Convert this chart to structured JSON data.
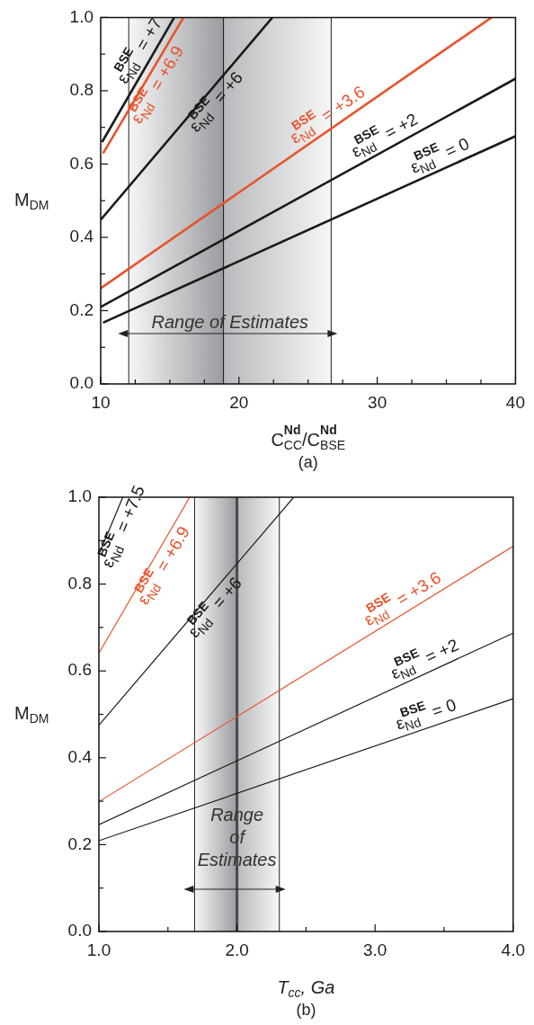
{
  "chart_data": [
    {
      "type": "line",
      "title": "(a)",
      "xlabel": "C$_{CC}$$^{Nd}$/C$_{BSE}$$^{Nd}$",
      "ylabel": "M$_{DM}$",
      "marker": "none",
      "line_style": "solid",
      "xlim": [
        10,
        40
      ],
      "ylim": [
        0,
        1
      ],
      "xticks": [
        10,
        {
          "value": 12.5,
          "label": null
        },
        {
          "value": 15,
          "label": null
        },
        {
          "value": 17.5,
          "label": null
        },
        20,
        {
          "value": 22.5,
          "label": null
        },
        {
          "value": 25,
          "label": null
        },
        {
          "value": 27.5,
          "label": null
        },
        30,
        {
          "value": 32.5,
          "label": null
        },
        {
          "value": 35,
          "label": null
        },
        {
          "value": 37.5,
          "label": null
        },
        40
      ],
      "yticks": [
        {
          "value": 0,
          "label": "0.0"
        },
        {
          "value": 0.1,
          "label": null
        },
        {
          "value": 0.2,
          "label": "0.2"
        },
        {
          "value": 0.3,
          "label": null
        },
        {
          "value": 0.4,
          "label": "0.4"
        },
        {
          "value": 0.5,
          "label": null
        },
        {
          "value": 0.6,
          "label": "0.6"
        },
        {
          "value": 0.7,
          "label": null
        },
        {
          "value": 0.8,
          "label": "0.8"
        },
        {
          "value": 0.9,
          "label": null
        },
        {
          "value": 1,
          "label": "1.0"
        }
      ],
      "series": [
        {
          "name": "ε$_{Nd}$$^{BSE}$ = +7",
          "color": "#1a1a1a",
          "x": [
            10.1,
            15.32
          ],
          "values": [
            0.66,
            1.0
          ]
        },
        {
          "name": "ε$_{Nd}$$^{BSE}$ = +6.9",
          "color": "#e8532a",
          "x": [
            10.17,
            15.99
          ],
          "values": [
            0.629,
            1.0
          ]
        },
        {
          "name": "ε$_{Nd}$$^{BSE}$ = +6",
          "color": "#1a1a1a",
          "x": [
            10,
            22.42
          ],
          "values": [
            0.448,
            1.0
          ]
        },
        {
          "name": "ε$_{Nd}$$^{BSE}$ = +3.6",
          "color": "#e8532a",
          "x": [
            10,
            38.27
          ],
          "values": [
            0.261,
            1.0
          ]
        },
        {
          "name": "ε$_{Nd}$$^{BSE}$ = +2",
          "color": "#1a1a1a",
          "x": [
            10,
            40
          ],
          "values": [
            0.21,
            0.833
          ]
        },
        {
          "name": "ε$_{Nd}$$^{BSE}$ = 0",
          "color": "#1a1a1a",
          "x": [
            10.17,
            40
          ],
          "values": [
            0.167,
            0.676
          ]
        }
      ],
      "bands": [
        {
          "axis": "x",
          "from": 12.03,
          "to": 26.67,
          "color": "#9a9ca0"
        }
      ],
      "ref_lines": [
        {
          "axis": "x",
          "value": 12.03,
          "color": "#222222"
        },
        {
          "axis": "x",
          "value": 18.88,
          "color": "#1a1a1a"
        },
        {
          "axis": "x",
          "value": 26.67,
          "color": "#222222"
        }
      ],
      "annotations": [
        "Range of Estimates"
      ]
    },
    {
      "type": "line",
      "title": "(b)",
      "xlabel": "T$_{cc}$, Ga",
      "ylabel": "M$_{DM}$",
      "marker": "none",
      "line_style": "solid",
      "xlim": [
        1,
        4
      ],
      "ylim": [
        0,
        1
      ],
      "xticks": [
        {
          "value": 1,
          "label": "1.0"
        },
        {
          "value": 1.5,
          "label": null
        },
        {
          "value": 2,
          "label": "2.0"
        },
        {
          "value": 2.5,
          "label": null
        },
        {
          "value": 3,
          "label": "3.0"
        },
        {
          "value": 3.5,
          "label": null
        },
        {
          "value": 4,
          "label": "4.0"
        }
      ],
      "yticks": [
        {
          "value": 0,
          "label": "0.0"
        },
        {
          "value": 0.1,
          "label": null
        },
        {
          "value": 0.2,
          "label": "0.2"
        },
        {
          "value": 0.3,
          "label": null
        },
        {
          "value": 0.4,
          "label": "0.4"
        },
        {
          "value": 0.5,
          "label": null
        },
        {
          "value": 0.6,
          "label": "0.6"
        },
        {
          "value": 0.7,
          "label": null
        },
        {
          "value": 0.8,
          "label": "0.8"
        },
        {
          "value": 0.9,
          "label": null
        },
        {
          "value": 1,
          "label": "1.0"
        }
      ],
      "series": [
        {
          "name": "ε$_{Nd}$$^{BSE}$ = +7.5",
          "color": "#1a1a1a",
          "x": [
            1.007,
            1.173
          ],
          "values": [
            0.873,
            1.0
          ]
        },
        {
          "name": "ε$_{Nd}$$^{BSE}$ = +6.9",
          "color": "#e8532a",
          "x": [
            1,
            1.658
          ],
          "values": [
            0.641,
            1.0
          ]
        },
        {
          "name": "ε$_{Nd}$$^{BSE}$ = +6",
          "color": "#1a1a1a",
          "x": [
            1,
            2.411
          ],
          "values": [
            0.475,
            1.0
          ]
        },
        {
          "name": "ε$_{Nd}$$^{BSE}$ = +3.6",
          "color": "#e8532a",
          "x": [
            1,
            4
          ],
          "values": [
            0.299,
            0.887
          ]
        },
        {
          "name": "ε$_{Nd}$$^{BSE}$ = +2",
          "color": "#1a1a1a",
          "x": [
            1,
            4
          ],
          "values": [
            0.246,
            0.687
          ]
        },
        {
          "name": "ε$_{Nd}$$^{BSE}$ = 0",
          "color": "#1a1a1a",
          "x": [
            1,
            4
          ],
          "values": [
            0.209,
            0.536
          ]
        }
      ],
      "bands": [
        {
          "axis": "x",
          "from": 1.693,
          "to": 2.307,
          "color": "#9a9ca0"
        }
      ],
      "ref_lines": [
        {
          "axis": "x",
          "value": 1.693,
          "color": "#222222"
        },
        {
          "axis": "x",
          "value": 2.0,
          "color": "#4a4a4a"
        },
        {
          "axis": "x",
          "value": 2.307,
          "color": "#222222"
        }
      ],
      "annotations": [
        "Range of Estimates"
      ]
    }
  ]
}
